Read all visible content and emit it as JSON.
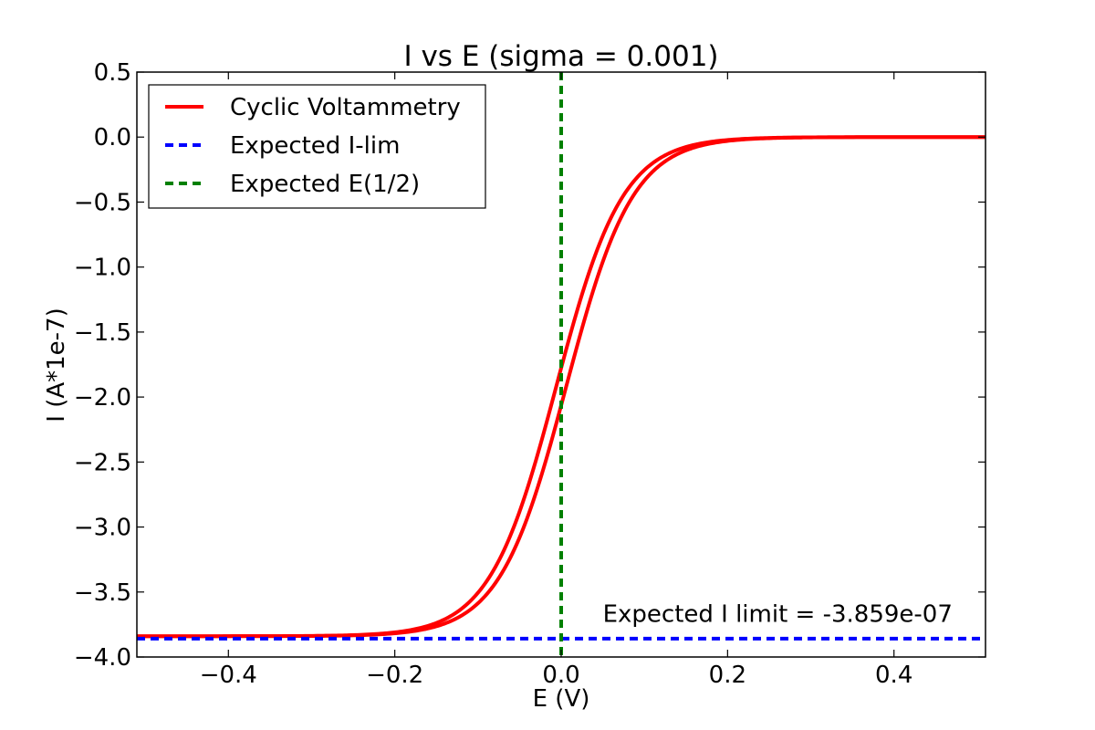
{
  "chart_data": {
    "type": "line",
    "title": "I vs E (sigma = 0.001)",
    "xlabel": "E (V)",
    "ylabel": "I (A*1e-7)",
    "xlim": [
      -0.51,
      0.51
    ],
    "ylim": [
      -4.0,
      0.5
    ],
    "x_ticks": [
      -0.4,
      -0.2,
      0.0,
      0.2,
      0.4
    ],
    "x_tick_labels": [
      "−0.4",
      "−0.2",
      "0.0",
      "0.2",
      "0.4"
    ],
    "y_ticks": [
      0.5,
      0.0,
      -0.5,
      -1.0,
      -1.5,
      -2.0,
      -2.5,
      -3.0,
      -3.5,
      -4.0
    ],
    "y_tick_labels": [
      "0.5",
      "0.0",
      "−0.5",
      "−1.0",
      "−1.5",
      "−2.0",
      "−2.5",
      "−3.0",
      "−3.5",
      "−4.0"
    ],
    "grid": false,
    "legend_position": "top-left",
    "series": [
      {
        "name": "Cyclic Voltammetry",
        "color": "#ff0000",
        "style": "solid",
        "model": "sigmoid",
        "i_lim": -3.84,
        "e_half_forward": -0.006,
        "e_half_reverse": 0.006,
        "slope": 25.0
      },
      {
        "name": "Expected I-lim",
        "color": "#0000ff",
        "style": "dashed",
        "orientation": "horizontal",
        "value": -3.859
      },
      {
        "name": "Expected E(1/2)",
        "color": "#008000",
        "style": "dashed",
        "orientation": "vertical",
        "value": 0.0
      }
    ],
    "annotations": [
      {
        "text": "Expected I limit = -3.859e-07",
        "x": 0.05,
        "y": -3.73
      }
    ]
  }
}
